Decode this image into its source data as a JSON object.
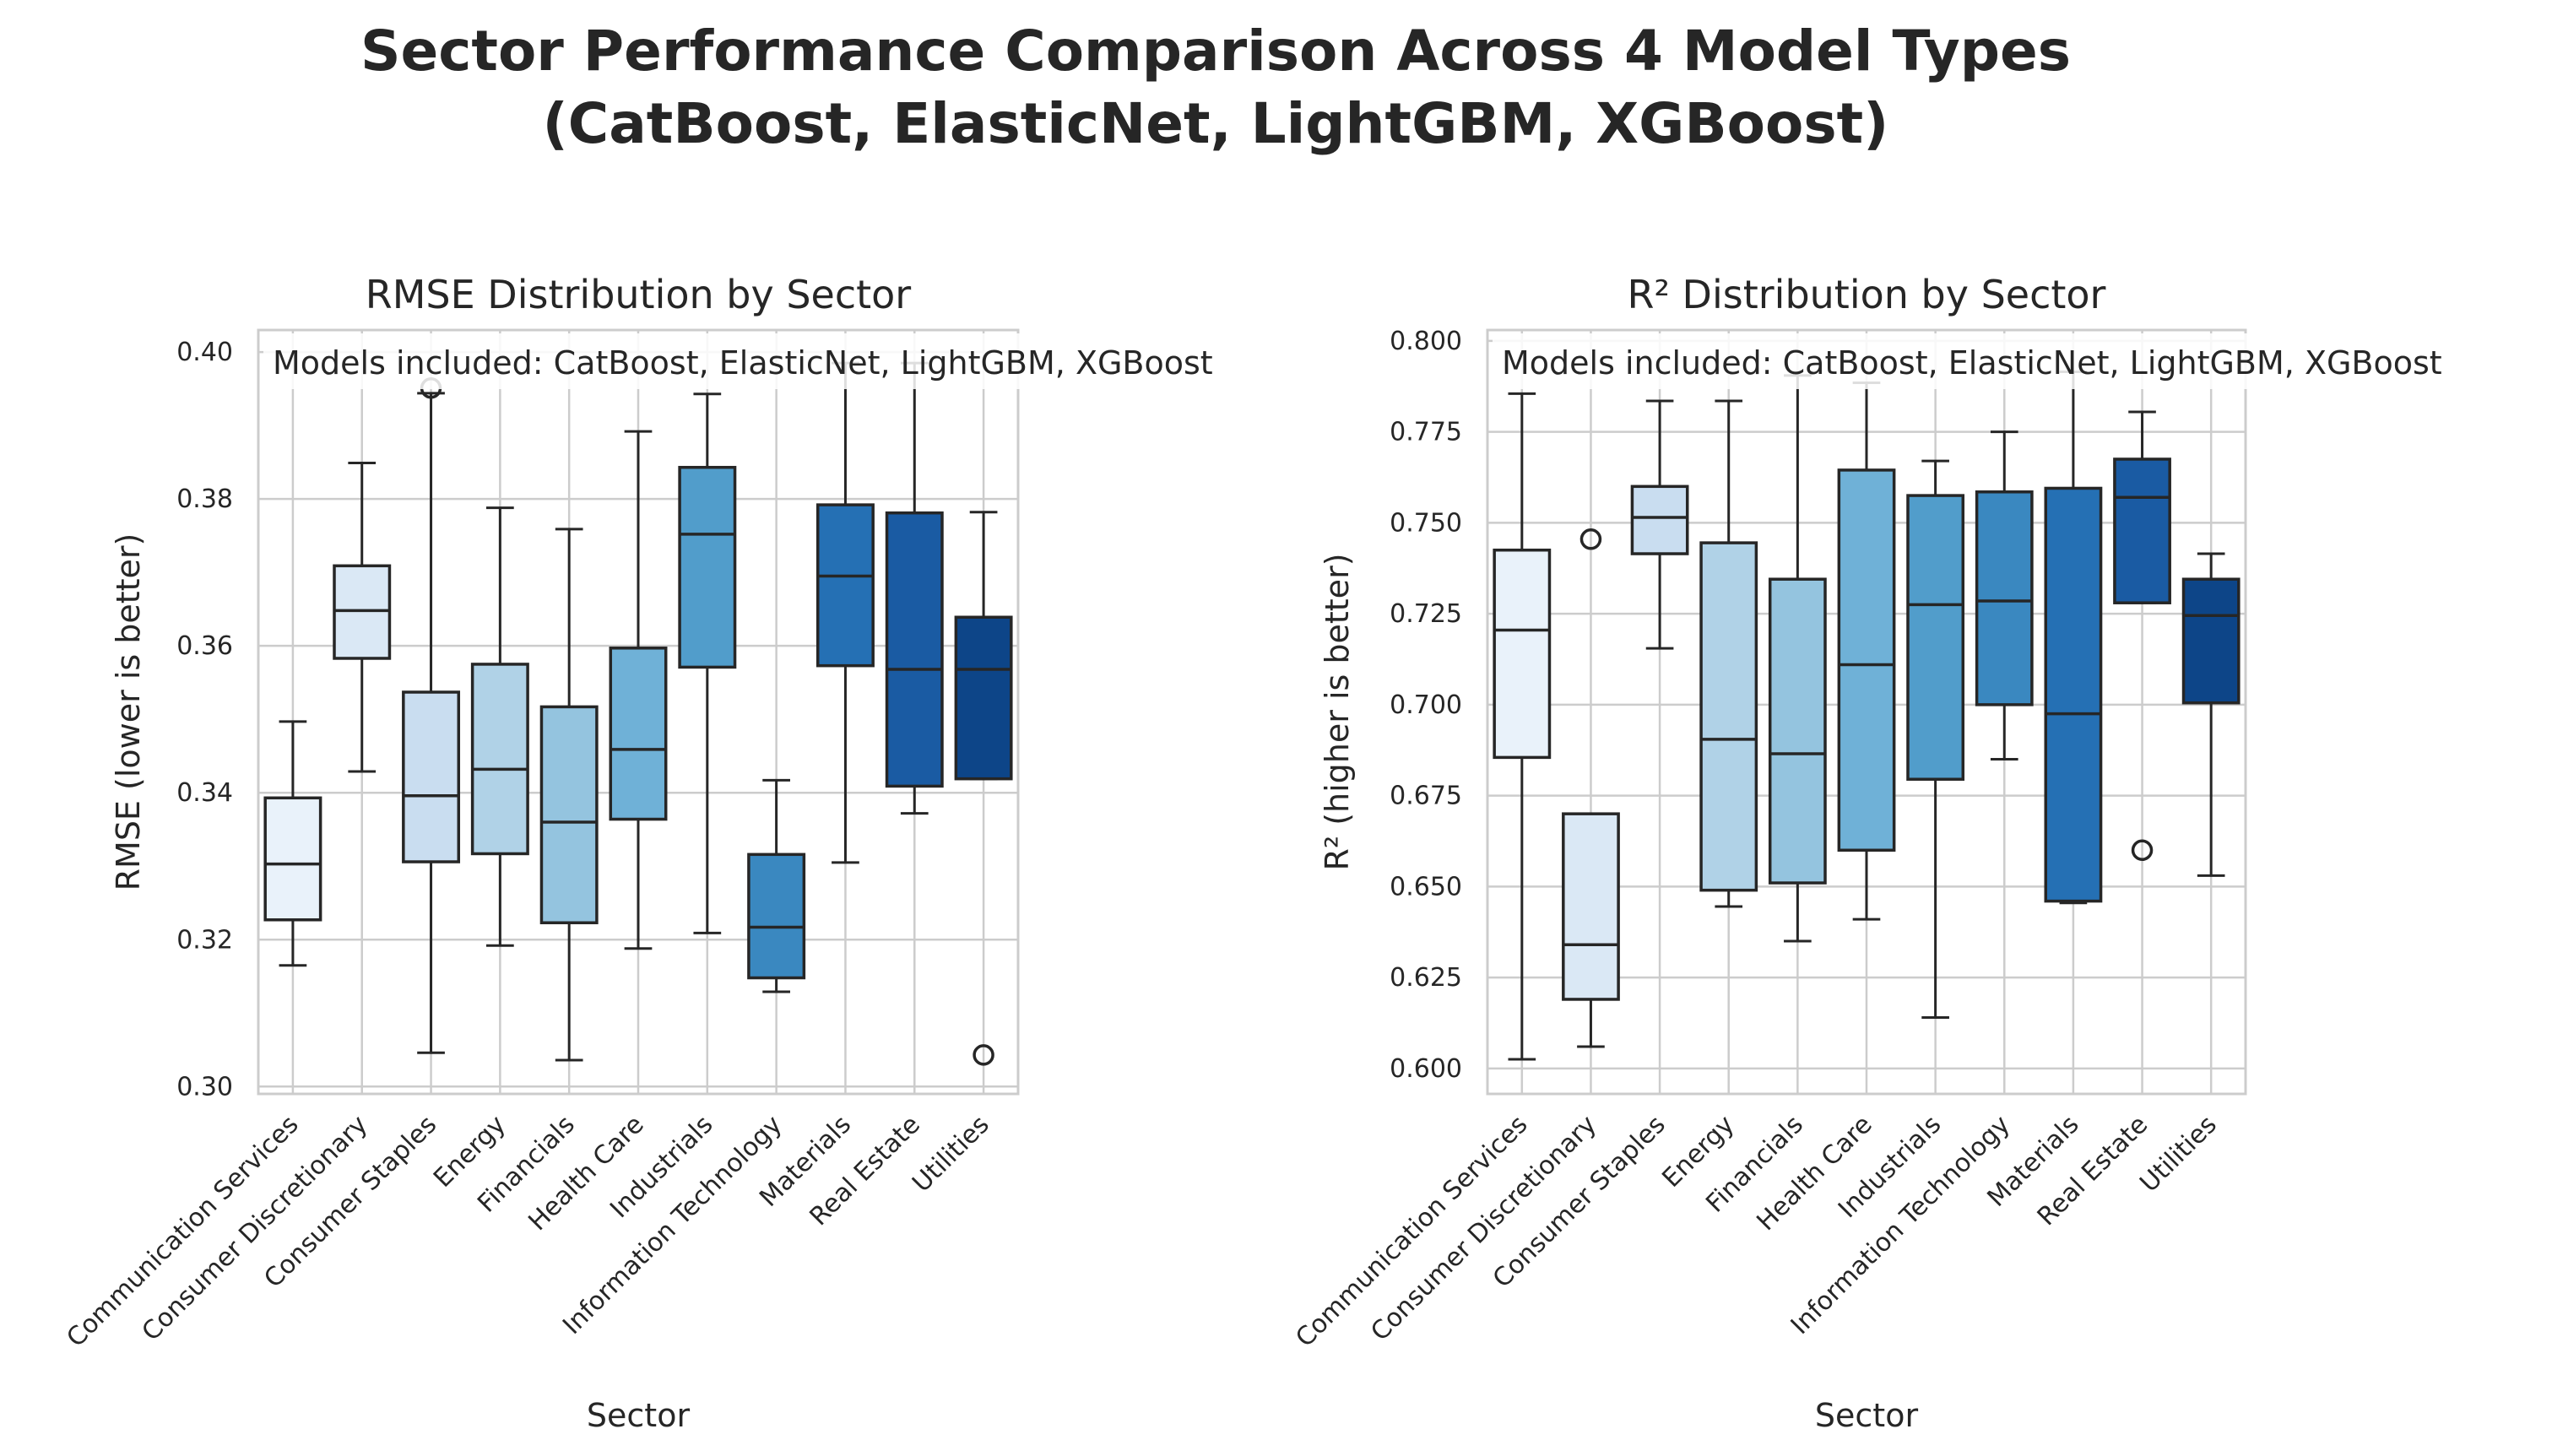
{
  "figure": {
    "title_line1": "Sector Performance Comparison Across 4 Model Types",
    "title_line2": "(CatBoost, ElasticNet, LightGBM, XGBoost)"
  },
  "chart_data": [
    {
      "type": "box",
      "title": "RMSE Distribution by Sector",
      "xlabel": "Sector",
      "ylabel": "RMSE (lower is better)",
      "annotation": "Models included: CatBoost, ElasticNet, LightGBM, XGBoost",
      "ylim": [
        0.299,
        0.403
      ],
      "yticks": [
        0.3,
        0.32,
        0.34,
        0.36,
        0.38,
        0.4
      ],
      "ytick_labels": [
        "0.30",
        "0.32",
        "0.34",
        "0.36",
        "0.38",
        "0.40"
      ],
      "grid": true,
      "categories": [
        "Communication Services",
        "Consumer Discretionary",
        "Consumer Staples",
        "Energy",
        "Financials",
        "Health Care",
        "Industrials",
        "Information Technology",
        "Materials",
        "Real Estate",
        "Utilities"
      ],
      "colors": [
        "#e9f2fa",
        "#dae8f5",
        "#c9ddf0",
        "#b0d2e7",
        "#94c4df",
        "#6fb1d7",
        "#519dcb",
        "#3a88c0",
        "#2570b4",
        "#1a5ba3",
        "#0d4588"
      ],
      "boxes": [
        {
          "whisker_low": 0.3165,
          "q1": 0.3227,
          "median": 0.3303,
          "q3": 0.3393,
          "whisker_high": 0.3497,
          "outliers": []
        },
        {
          "whisker_low": 0.3429,
          "q1": 0.3583,
          "median": 0.3648,
          "q3": 0.3709,
          "whisker_high": 0.3849,
          "outliers": []
        },
        {
          "whisker_low": 0.3046,
          "q1": 0.3306,
          "median": 0.3396,
          "q3": 0.3537,
          "whisker_high": 0.3944,
          "outliers": [
            0.3951
          ]
        },
        {
          "whisker_low": 0.3192,
          "q1": 0.3317,
          "median": 0.3432,
          "q3": 0.3575,
          "whisker_high": 0.3788,
          "outliers": []
        },
        {
          "whisker_low": 0.3036,
          "q1": 0.3223,
          "median": 0.336,
          "q3": 0.3517,
          "whisker_high": 0.3759,
          "outliers": []
        },
        {
          "whisker_low": 0.3188,
          "q1": 0.3364,
          "median": 0.3459,
          "q3": 0.3597,
          "whisker_high": 0.3892,
          "outliers": []
        },
        {
          "whisker_low": 0.3209,
          "q1": 0.3571,
          "median": 0.3752,
          "q3": 0.3843,
          "whisker_high": 0.3943,
          "outliers": []
        },
        {
          "whisker_low": 0.3129,
          "q1": 0.3148,
          "median": 0.3217,
          "q3": 0.3316,
          "whisker_high": 0.3417,
          "outliers": []
        },
        {
          "whisker_low": 0.3305,
          "q1": 0.3573,
          "median": 0.3695,
          "q3": 0.3792,
          "whisker_high": 0.3985,
          "outliers": []
        },
        {
          "whisker_low": 0.3372,
          "q1": 0.3409,
          "median": 0.3568,
          "q3": 0.3781,
          "whisker_high": 0.3985,
          "outliers": []
        },
        {
          "whisker_low": 0.3419,
          "q1": 0.3419,
          "median": 0.3568,
          "q3": 0.3639,
          "whisker_high": 0.3782,
          "outliers": [
            0.3043
          ]
        }
      ]
    },
    {
      "type": "box",
      "title": "R² Distribution by Sector",
      "xlabel": "Sector",
      "ylabel": "R² (higher is better)",
      "annotation": "Models included: CatBoost, ElasticNet, LightGBM, XGBoost",
      "ylim": [
        0.593,
        0.803
      ],
      "yticks": [
        0.6,
        0.625,
        0.65,
        0.675,
        0.7,
        0.725,
        0.75,
        0.775,
        0.8
      ],
      "ytick_labels": [
        "0.600",
        "0.625",
        "0.650",
        "0.675",
        "0.700",
        "0.725",
        "0.750",
        "0.775",
        "0.800"
      ],
      "grid": true,
      "categories": [
        "Communication Services",
        "Consumer Discretionary",
        "Consumer Staples",
        "Energy",
        "Financials",
        "Health Care",
        "Industrials",
        "Information Technology",
        "Materials",
        "Real Estate",
        "Utilities"
      ],
      "colors": [
        "#e9f2fa",
        "#dae8f5",
        "#c9ddf0",
        "#b0d2e7",
        "#94c4df",
        "#6fb1d7",
        "#519dcb",
        "#3a88c0",
        "#2570b4",
        "#1a5ba3",
        "#0d4588"
      ],
      "boxes": [
        {
          "whisker_low": 0.6025,
          "q1": 0.6855,
          "median": 0.7205,
          "q3": 0.7425,
          "whisker_high": 0.7855,
          "outliers": []
        },
        {
          "whisker_low": 0.606,
          "q1": 0.619,
          "median": 0.634,
          "q3": 0.67,
          "whisker_high": 0.67,
          "outliers": [
            0.7455
          ]
        },
        {
          "whisker_low": 0.7155,
          "q1": 0.7415,
          "median": 0.7515,
          "q3": 0.76,
          "whisker_high": 0.7835,
          "outliers": []
        },
        {
          "whisker_low": 0.6445,
          "q1": 0.649,
          "median": 0.6905,
          "q3": 0.7445,
          "whisker_high": 0.7835,
          "outliers": []
        },
        {
          "whisker_low": 0.635,
          "q1": 0.651,
          "median": 0.6865,
          "q3": 0.7345,
          "whisker_high": 0.7905,
          "outliers": []
        },
        {
          "whisker_low": 0.641,
          "q1": 0.66,
          "median": 0.711,
          "q3": 0.7645,
          "whisker_high": 0.7885,
          "outliers": []
        },
        {
          "whisker_low": 0.614,
          "q1": 0.6795,
          "median": 0.7275,
          "q3": 0.7575,
          "whisker_high": 0.767,
          "outliers": []
        },
        {
          "whisker_low": 0.685,
          "q1": 0.7,
          "median": 0.7285,
          "q3": 0.7585,
          "whisker_high": 0.775,
          "outliers": []
        },
        {
          "whisker_low": 0.6455,
          "q1": 0.646,
          "median": 0.6975,
          "q3": 0.7595,
          "whisker_high": 0.7915,
          "outliers": []
        },
        {
          "whisker_low": 0.728,
          "q1": 0.728,
          "median": 0.757,
          "q3": 0.7675,
          "whisker_high": 0.7805,
          "outliers": [
            0.66
          ]
        },
        {
          "whisker_low": 0.653,
          "q1": 0.7005,
          "median": 0.7245,
          "q3": 0.7345,
          "whisker_high": 0.7415,
          "outliers": []
        }
      ]
    }
  ]
}
